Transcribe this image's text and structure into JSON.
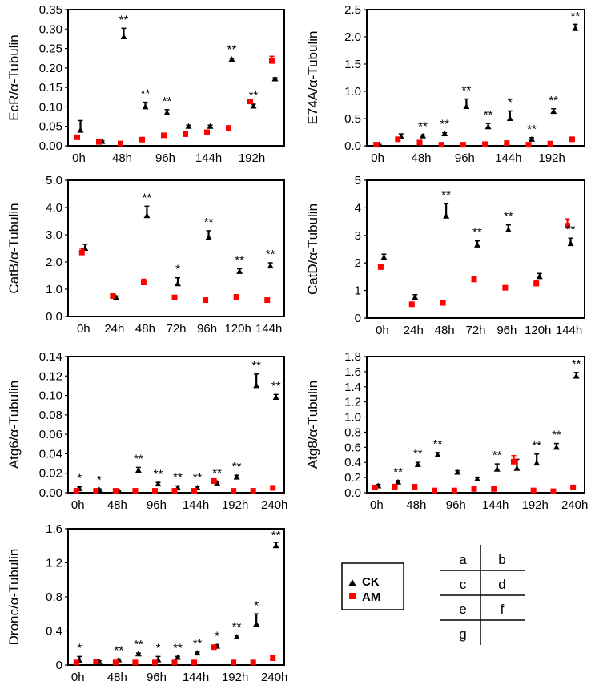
{
  "figure": {
    "layout_labels": [
      [
        "a",
        "b"
      ],
      [
        "c",
        "d"
      ],
      [
        "e",
        "f"
      ],
      [
        "g",
        ""
      ]
    ]
  },
  "legend": [
    {
      "name": "CK",
      "marker": "triangle",
      "color": "#000000"
    },
    {
      "name": "AM",
      "marker": "square",
      "color": "#ff0000"
    }
  ],
  "chart_data": [
    {
      "id": "a",
      "type": "scatter",
      "ylabel": "EcR/α-Tubulin",
      "ylim": [
        0,
        0.35
      ],
      "yticks": [
        "0.00",
        "0.05",
        "0.10",
        "0.15",
        "0.20",
        "0.25",
        "0.30",
        "0.35"
      ],
      "tick_values": [
        0,
        0.05,
        0.1,
        0.15,
        0.2,
        0.25,
        0.3,
        0.35
      ],
      "categories": [
        "0h",
        "24h",
        "48h",
        "72h",
        "96h",
        "120h",
        "144h",
        "168h",
        "192h",
        "216h"
      ],
      "xtick_labels": [
        "0h",
        "",
        "48h",
        "",
        "96h",
        "",
        "144h",
        "",
        "192h",
        ""
      ],
      "series": [
        {
          "name": "CK",
          "values": [
            0.04,
            0.011,
            0.28,
            0.1,
            0.085,
            0.05,
            0.05,
            0.222,
            0.102,
            0.172
          ],
          "err": [
            0.025,
            0.002,
            0.022,
            0.012,
            0.008,
            0.003,
            0.003,
            0.003,
            0.005,
            0.003
          ]
        },
        {
          "name": "AM",
          "values": [
            0.022,
            0.01,
            0.006,
            0.016,
            0.027,
            0.03,
            0.035,
            0.046,
            0.114,
            0.218
          ],
          "err": [
            0.004,
            0.002,
            0.001,
            0.002,
            0.002,
            0.002,
            0.002,
            0.002,
            0.005,
            0.012
          ]
        }
      ],
      "annotations": [
        "",
        "",
        "**",
        "**",
        "**",
        "",
        "",
        "**",
        "**",
        ""
      ]
    },
    {
      "id": "b",
      "type": "scatter",
      "ylabel": "E74A/α-Tubulin",
      "ylim": [
        0,
        2.5
      ],
      "yticks": [
        "0.0",
        "0.5",
        "1.0",
        "1.5",
        "2.0",
        "2.5"
      ],
      "tick_values": [
        0,
        0.5,
        1.0,
        1.5,
        2.0,
        2.5
      ],
      "categories": [
        "0h",
        "24h",
        "48h",
        "72h",
        "96h",
        "120h",
        "144h",
        "168h",
        "192h",
        "216h"
      ],
      "xtick_labels": [
        "0h",
        "",
        "48h",
        "",
        "96h",
        "",
        "144h",
        "",
        "192h",
        ""
      ],
      "series": [
        {
          "name": "CK",
          "values": [
            0.02,
            0.17,
            0.18,
            0.22,
            0.72,
            0.35,
            0.5,
            0.12,
            0.63,
            2.15
          ],
          "err": [
            0.005,
            0.05,
            0.02,
            0.02,
            0.14,
            0.06,
            0.14,
            0.03,
            0.05,
            0.08
          ]
        },
        {
          "name": "AM",
          "values": [
            0.02,
            0.12,
            0.06,
            0.02,
            0.02,
            0.03,
            0.05,
            0.02,
            0.04,
            0.12
          ],
          "err": [
            0.003,
            0.01,
            0.005,
            0.003,
            0.003,
            0.003,
            0.005,
            0.003,
            0.005,
            0.01
          ]
        }
      ],
      "annotations": [
        "",
        "",
        "**",
        "**",
        "**",
        "**",
        "*",
        "**",
        "**",
        "**"
      ]
    },
    {
      "id": "c",
      "type": "scatter",
      "ylabel": "CatB/α-Tubulin",
      "ylim": [
        0,
        5.0
      ],
      "yticks": [
        "0.0",
        "1.0",
        "2.0",
        "3.0",
        "4.0",
        "5.0"
      ],
      "tick_values": [
        0,
        1,
        2,
        3,
        4,
        5
      ],
      "categories": [
        "0h",
        "24h",
        "48h",
        "72h",
        "96h",
        "120h",
        "144h"
      ],
      "xtick_labels": [
        "0h",
        "24h",
        "48h",
        "72h",
        "96h",
        "120h",
        "144h"
      ],
      "series": [
        {
          "name": "CK",
          "values": [
            2.5,
            0.7,
            3.7,
            1.2,
            2.9,
            1.65,
            1.85
          ],
          "err": [
            0.15,
            0.05,
            0.35,
            0.22,
            0.25,
            0.1,
            0.12
          ]
        },
        {
          "name": "AM",
          "values": [
            2.35,
            0.75,
            1.25,
            0.7,
            0.6,
            0.72,
            0.6
          ],
          "err": [
            0.15,
            0.05,
            0.12,
            0.05,
            0.04,
            0.05,
            0.04
          ]
        }
      ],
      "annotations": [
        "",
        "",
        "**",
        "*",
        "**",
        "**",
        "**"
      ]
    },
    {
      "id": "d",
      "type": "scatter",
      "ylabel": "CatD/α-Tubulin",
      "ylim": [
        0,
        5
      ],
      "yticks": [
        "0",
        "1",
        "2",
        "3",
        "4",
        "5"
      ],
      "tick_values": [
        0,
        1,
        2,
        3,
        4,
        5
      ],
      "categories": [
        "0h",
        "24h",
        "48h",
        "72h",
        "96h",
        "120h",
        "144h"
      ],
      "xtick_labels": [
        "0h",
        "24h",
        "48h",
        "72h",
        "96h",
        "120h",
        "144h"
      ],
      "series": [
        {
          "name": "CK",
          "values": [
            2.2,
            0.75,
            3.7,
            2.65,
            3.2,
            1.5,
            2.7
          ],
          "err": [
            0.12,
            0.1,
            0.45,
            0.15,
            0.18,
            0.12,
            0.2
          ]
        },
        {
          "name": "AM",
          "values": [
            1.85,
            0.5,
            0.55,
            1.4,
            1.1,
            1.25,
            3.35
          ],
          "err": [
            0.08,
            0.04,
            0.04,
            0.12,
            0.05,
            0.12,
            0.25
          ]
        }
      ],
      "annotations": [
        "",
        "",
        "**",
        "**",
        "**",
        "",
        "**"
      ]
    },
    {
      "id": "e",
      "type": "scatter",
      "ylabel": "Atg6/α-Tubulin",
      "ylim": [
        0,
        0.14
      ],
      "yticks": [
        "0.00",
        "0.02",
        "0.04",
        "0.06",
        "0.08",
        "0.10",
        "0.12",
        "0.14"
      ],
      "tick_values": [
        0,
        0.02,
        0.04,
        0.06,
        0.08,
        0.1,
        0.12,
        0.14
      ],
      "categories": [
        "0h",
        "24h",
        "48h",
        "72h",
        "96h",
        "120h",
        "144h",
        "168h",
        "192h",
        "216h",
        "240h"
      ],
      "xtick_labels": [
        "0h",
        "",
        "48h",
        "",
        "96h",
        "",
        "144h",
        "",
        "192h",
        "",
        "240h"
      ],
      "series": [
        {
          "name": "CK",
          "values": [
            0.004,
            0.003,
            0.002,
            0.023,
            0.009,
            0.005,
            0.005,
            0.01,
            0.016,
            0.11,
            0.098
          ],
          "err": [
            0.002,
            0.001,
            0.0005,
            0.003,
            0.0015,
            0.002,
            0.0015,
            0.0015,
            0.002,
            0.012,
            0.003
          ]
        },
        {
          "name": "AM",
          "values": [
            0.002,
            0.002,
            0.002,
            0.002,
            0.002,
            0.002,
            0.002,
            0.012,
            0.002,
            0.002,
            0.005
          ],
          "err": [
            0.0005,
            0.0005,
            0.0005,
            0.0005,
            0.0005,
            0.0005,
            0.0005,
            0.0015,
            0.0005,
            0.0005,
            0.0005
          ]
        }
      ],
      "annotations": [
        "*",
        "*",
        "",
        "**",
        "**",
        "**",
        "**",
        "**",
        "**",
        "**",
        "**"
      ]
    },
    {
      "id": "f",
      "type": "scatter",
      "ylabel": "Atg8/α-Tubulin",
      "ylim": [
        0,
        1.8
      ],
      "yticks": [
        "0.0",
        "0.2",
        "0.4",
        "0.6",
        "0.8",
        "1.0",
        "1.2",
        "1.4",
        "1.6",
        "1.8"
      ],
      "tick_values": [
        0,
        0.2,
        0.4,
        0.6,
        0.8,
        1.0,
        1.2,
        1.4,
        1.6,
        1.8
      ],
      "categories": [
        "0h",
        "24h",
        "48h",
        "72h",
        "96h",
        "120h",
        "144h",
        "168h",
        "192h",
        "216h",
        "240h"
      ],
      "xtick_labels": [
        "0h",
        "",
        "48h",
        "",
        "96h",
        "",
        "144h",
        "",
        "192h",
        "",
        "240h"
      ],
      "series": [
        {
          "name": "CK",
          "values": [
            0.09,
            0.14,
            0.37,
            0.5,
            0.27,
            0.18,
            0.31,
            0.32,
            0.39,
            0.6,
            1.54
          ],
          "err": [
            0.02,
            0.02,
            0.03,
            0.03,
            0.02,
            0.02,
            0.07,
            0.12,
            0.12,
            0.05,
            0.05
          ]
        },
        {
          "name": "AM",
          "values": [
            0.07,
            0.08,
            0.08,
            0.03,
            0.03,
            0.05,
            0.05,
            0.41,
            0.03,
            0.02,
            0.07
          ],
          "err": [
            0.01,
            0.01,
            0.01,
            0.005,
            0.005,
            0.005,
            0.005,
            0.08,
            0.005,
            0.005,
            0.01
          ]
        }
      ],
      "annotations": [
        "",
        "**",
        "**",
        "**",
        "",
        "",
        "**",
        "",
        "**",
        "**",
        "**"
      ]
    },
    {
      "id": "g",
      "type": "scatter",
      "ylabel": "Dronc/α-Tubulin",
      "ylim": [
        0,
        1.6
      ],
      "yticks": [
        "0",
        "0.4",
        "0.8",
        "1.2",
        "1.6"
      ],
      "tick_values": [
        0,
        0.4,
        0.8,
        1.2,
        1.6
      ],
      "categories": [
        "0h",
        "24h",
        "48h",
        "72h",
        "96h",
        "120h",
        "144h",
        "168h",
        "192h",
        "216h",
        "240h"
      ],
      "xtick_labels": [
        "0h",
        "",
        "48h",
        "",
        "96h",
        "",
        "144h",
        "",
        "192h",
        "",
        "240h"
      ],
      "series": [
        {
          "name": "CK",
          "values": [
            0.05,
            0.04,
            0.06,
            0.13,
            0.06,
            0.09,
            0.14,
            0.22,
            0.33,
            0.48,
            1.4
          ],
          "err": [
            0.05,
            0.01,
            0.01,
            0.01,
            0.04,
            0.01,
            0.01,
            0.02,
            0.02,
            0.12,
            0.04
          ]
        },
        {
          "name": "AM",
          "values": [
            0.03,
            0.04,
            0.03,
            0.03,
            0.03,
            0.03,
            0.03,
            0.21,
            0.03,
            0.03,
            0.08
          ],
          "err": [
            0.005,
            0.005,
            0.005,
            0.005,
            0.005,
            0.005,
            0.005,
            0.02,
            0.005,
            0.005,
            0.01
          ]
        }
      ],
      "annotations": [
        "*",
        "",
        "**",
        "**",
        "*",
        "**",
        "**",
        "*",
        "**",
        "*",
        "**"
      ]
    }
  ]
}
